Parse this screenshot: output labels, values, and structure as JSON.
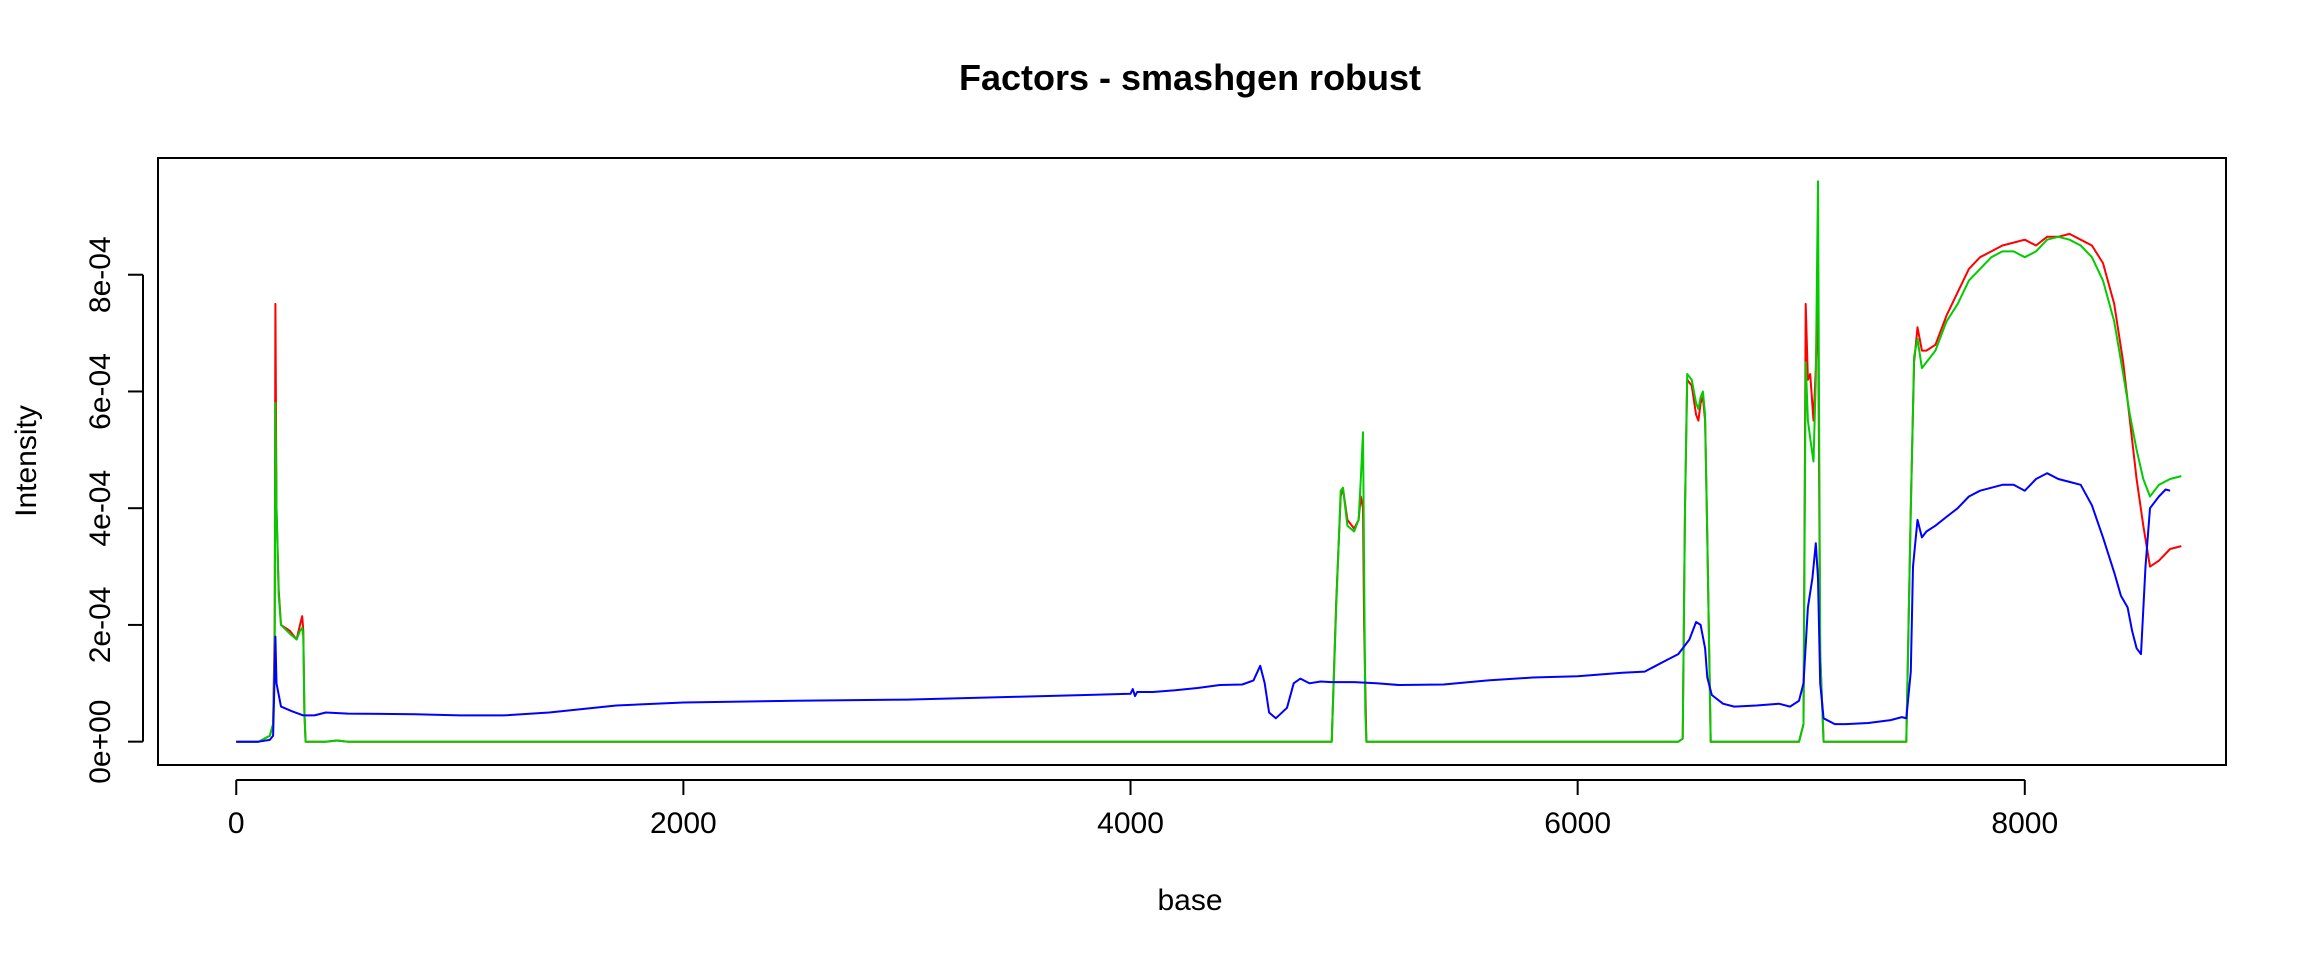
{
  "chart_data": {
    "type": "line",
    "title": "Factors - smashgen robust",
    "xlabel": "base",
    "ylabel": "Intensity",
    "xlim": [
      -350,
      8900
    ],
    "ylim": [
      -4e-05,
      0.001
    ],
    "x_ticks": [
      0,
      2000,
      4000,
      6000,
      8000
    ],
    "x_tick_labels": [
      "0",
      "2000",
      "4000",
      "6000",
      "8000"
    ],
    "y_ticks": [
      0,
      0.0002,
      0.0004,
      0.0006,
      0.0008
    ],
    "y_tick_labels": [
      "0e+00",
      "2e-04",
      "4e-04",
      "6e-04",
      "8e-04"
    ],
    "grid": false,
    "legend": "none",
    "series": [
      {
        "color": "#ff0000",
        "points": [
          [
            0,
            0
          ],
          [
            100,
            0
          ],
          [
            150,
            1e-05
          ],
          [
            165,
            3e-05
          ],
          [
            172,
            0.0002
          ],
          [
            175,
            0.00075
          ],
          [
            180,
            0.0004
          ],
          [
            190,
            0.00026
          ],
          [
            200,
            0.0002
          ],
          [
            240,
            0.00019
          ],
          [
            270,
            0.000175
          ],
          [
            285,
            0.0002
          ],
          [
            295,
            0.000215
          ],
          [
            300,
            0.00019
          ],
          [
            305,
            5e-05
          ],
          [
            310,
            0
          ],
          [
            400,
            0
          ],
          [
            450,
            2e-06
          ],
          [
            500,
            0
          ],
          [
            4900,
            0
          ],
          [
            4920,
            0.00024
          ],
          [
            4940,
            0.00042
          ],
          [
            4950,
            0.000435
          ],
          [
            4970,
            0.00038
          ],
          [
            5000,
            0.000365
          ],
          [
            5020,
            0.00038
          ],
          [
            5030,
            0.00042
          ],
          [
            5040,
            0.0004
          ],
          [
            5045,
            0.0002
          ],
          [
            5055,
            0
          ],
          [
            6450,
            0
          ],
          [
            6470,
            5e-06
          ],
          [
            6480,
            0.0004
          ],
          [
            6490,
            0.00062
          ],
          [
            6510,
            0.00061
          ],
          [
            6530,
            0.00056
          ],
          [
            6540,
            0.00055
          ],
          [
            6550,
            0.00058
          ],
          [
            6560,
            0.00059
          ],
          [
            6570,
            0.00055
          ],
          [
            6580,
            0.00035
          ],
          [
            6595,
            0
          ],
          [
            6990,
            0
          ],
          [
            7010,
            3e-05
          ],
          [
            7020,
            0.00075
          ],
          [
            7030,
            0.00062
          ],
          [
            7040,
            0.00063
          ],
          [
            7055,
            0.00055
          ],
          [
            7065,
            0.00064
          ],
          [
            7075,
            0.00077
          ],
          [
            7085,
            0.00015
          ],
          [
            7100,
            0
          ],
          [
            7470,
            0
          ],
          [
            7490,
            0.0004
          ],
          [
            7505,
            0.00065
          ],
          [
            7520,
            0.00071
          ],
          [
            7540,
            0.00067
          ],
          [
            7560,
            0.00067
          ],
          [
            7600,
            0.00068
          ],
          [
            7650,
            0.00073
          ],
          [
            7700,
            0.00077
          ],
          [
            7750,
            0.00081
          ],
          [
            7800,
            0.00083
          ],
          [
            7850,
            0.00084
          ],
          [
            7900,
            0.00085
          ],
          [
            7950,
            0.000855
          ],
          [
            8000,
            0.00086
          ],
          [
            8050,
            0.00085
          ],
          [
            8100,
            0.000865
          ],
          [
            8150,
            0.000865
          ],
          [
            8200,
            0.00087
          ],
          [
            8250,
            0.00086
          ],
          [
            8300,
            0.00085
          ],
          [
            8350,
            0.00082
          ],
          [
            8400,
            0.00075
          ],
          [
            8440,
            0.00065
          ],
          [
            8470,
            0.00055
          ],
          [
            8500,
            0.00045
          ],
          [
            8530,
            0.00037
          ],
          [
            8560,
            0.0003
          ],
          [
            8600,
            0.00031
          ],
          [
            8650,
            0.00033
          ],
          [
            8700,
            0.000335
          ]
        ]
      },
      {
        "color": "#00cc00",
        "points": [
          [
            0,
            0
          ],
          [
            100,
            0
          ],
          [
            150,
            1e-05
          ],
          [
            165,
            3e-05
          ],
          [
            172,
            0.00015
          ],
          [
            175,
            0.00058
          ],
          [
            180,
            0.0004
          ],
          [
            190,
            0.00025
          ],
          [
            200,
            0.0002
          ],
          [
            240,
            0.000185
          ],
          [
            270,
            0.000175
          ],
          [
            285,
            0.00019
          ],
          [
            295,
            0.000195
          ],
          [
            300,
            0.00018
          ],
          [
            305,
            5e-05
          ],
          [
            310,
            0
          ],
          [
            400,
            0
          ],
          [
            450,
            2e-06
          ],
          [
            500,
            0
          ],
          [
            4900,
            0
          ],
          [
            4920,
            0.00023
          ],
          [
            4940,
            0.00043
          ],
          [
            4950,
            0.000435
          ],
          [
            4970,
            0.00037
          ],
          [
            5000,
            0.00036
          ],
          [
            5020,
            0.00038
          ],
          [
            5030,
            0.00045
          ],
          [
            5040,
            0.00053
          ],
          [
            5045,
            0.0003
          ],
          [
            5050,
            5e-05
          ],
          [
            5055,
            0
          ],
          [
            6450,
            0
          ],
          [
            6470,
            5e-06
          ],
          [
            6480,
            0.0004
          ],
          [
            6490,
            0.00063
          ],
          [
            6510,
            0.00062
          ],
          [
            6530,
            0.00058
          ],
          [
            6540,
            0.00057
          ],
          [
            6550,
            0.00059
          ],
          [
            6560,
            0.0006
          ],
          [
            6570,
            0.00056
          ],
          [
            6580,
            0.00035
          ],
          [
            6595,
            0
          ],
          [
            6990,
            0
          ],
          [
            7010,
            3e-05
          ],
          [
            7020,
            0.00065
          ],
          [
            7030,
            0.00055
          ],
          [
            7040,
            0.00052
          ],
          [
            7055,
            0.00048
          ],
          [
            7065,
            0.00062
          ],
          [
            7075,
            0.00096
          ],
          [
            7085,
            0.00015
          ],
          [
            7100,
            0
          ],
          [
            7470,
            0
          ],
          [
            7490,
            0.0004
          ],
          [
            7505,
            0.00066
          ],
          [
            7520,
            0.00069
          ],
          [
            7540,
            0.00064
          ],
          [
            7560,
            0.00065
          ],
          [
            7600,
            0.00067
          ],
          [
            7650,
            0.00072
          ],
          [
            7700,
            0.00075
          ],
          [
            7750,
            0.00079
          ],
          [
            7800,
            0.00081
          ],
          [
            7850,
            0.00083
          ],
          [
            7900,
            0.00084
          ],
          [
            7950,
            0.00084
          ],
          [
            8000,
            0.00083
          ],
          [
            8050,
            0.00084
          ],
          [
            8100,
            0.00086
          ],
          [
            8150,
            0.000865
          ],
          [
            8200,
            0.00086
          ],
          [
            8250,
            0.00085
          ],
          [
            8300,
            0.00083
          ],
          [
            8350,
            0.00079
          ],
          [
            8400,
            0.00072
          ],
          [
            8440,
            0.00063
          ],
          [
            8470,
            0.00056
          ],
          [
            8500,
            0.0005
          ],
          [
            8530,
            0.00045
          ],
          [
            8560,
            0.00042
          ],
          [
            8600,
            0.00044
          ],
          [
            8650,
            0.00045
          ],
          [
            8700,
            0.000455
          ]
        ]
      },
      {
        "color": "#0000ff",
        "points": [
          [
            0,
            0
          ],
          [
            100,
            0
          ],
          [
            150,
            3e-06
          ],
          [
            165,
            1e-05
          ],
          [
            172,
            0.00012
          ],
          [
            175,
            0.00018
          ],
          [
            180,
            0.0001
          ],
          [
            200,
            6e-05
          ],
          [
            250,
            5.2e-05
          ],
          [
            300,
            4.5e-05
          ],
          [
            350,
            4.5e-05
          ],
          [
            400,
            5e-05
          ],
          [
            500,
            4.8e-05
          ],
          [
            800,
            4.7e-05
          ],
          [
            1000,
            4.5e-05
          ],
          [
            1200,
            4.5e-05
          ],
          [
            1400,
            5e-05
          ],
          [
            1700,
            6.2e-05
          ],
          [
            2000,
            6.7e-05
          ],
          [
            2500,
            7e-05
          ],
          [
            3000,
            7.2e-05
          ],
          [
            3500,
            7.7e-05
          ],
          [
            3800,
            8e-05
          ],
          [
            4000,
            8.2e-05
          ],
          [
            4010,
            9e-05
          ],
          [
            4020,
            7.8e-05
          ],
          [
            4030,
            8.5e-05
          ],
          [
            4100,
            8.5e-05
          ],
          [
            4200,
            8.8e-05
          ],
          [
            4300,
            9.2e-05
          ],
          [
            4400,
            9.7e-05
          ],
          [
            4500,
            9.8e-05
          ],
          [
            4550,
            0.000105
          ],
          [
            4580,
            0.00013
          ],
          [
            4600,
            0.0001
          ],
          [
            4620,
            5e-05
          ],
          [
            4650,
            4e-05
          ],
          [
            4700,
            5.8e-05
          ],
          [
            4730,
            0.0001
          ],
          [
            4760,
            0.000108
          ],
          [
            4800,
            0.0001
          ],
          [
            4850,
            0.000103
          ],
          [
            4900,
            0.000102
          ],
          [
            5000,
            0.000102
          ],
          [
            5100,
            0.0001
          ],
          [
            5200,
            9.7e-05
          ],
          [
            5400,
            9.8e-05
          ],
          [
            5600,
            0.000105
          ],
          [
            5800,
            0.00011
          ],
          [
            6000,
            0.000112
          ],
          [
            6200,
            0.000118
          ],
          [
            6300,
            0.00012
          ],
          [
            6400,
            0.00014
          ],
          [
            6450,
            0.00015
          ],
          [
            6500,
            0.000175
          ],
          [
            6530,
            0.000205
          ],
          [
            6550,
            0.0002
          ],
          [
            6570,
            0.00016
          ],
          [
            6580,
            0.00011
          ],
          [
            6600,
            8e-05
          ],
          [
            6650,
            6.5e-05
          ],
          [
            6700,
            6e-05
          ],
          [
            6800,
            6.2e-05
          ],
          [
            6900,
            6.5e-05
          ],
          [
            6950,
            6e-05
          ],
          [
            6990,
            7e-05
          ],
          [
            7010,
            0.0001
          ],
          [
            7030,
            0.00023
          ],
          [
            7050,
            0.00028
          ],
          [
            7065,
            0.00034
          ],
          [
            7075,
            0.00028
          ],
          [
            7085,
            0.0001
          ],
          [
            7100,
            4e-05
          ],
          [
            7150,
            3e-05
          ],
          [
            7200,
            3e-05
          ],
          [
            7300,
            3.2e-05
          ],
          [
            7400,
            3.7e-05
          ],
          [
            7450,
            4.2e-05
          ],
          [
            7470,
            4e-05
          ],
          [
            7490,
            0.00012
          ],
          [
            7500,
            0.0003
          ],
          [
            7520,
            0.00038
          ],
          [
            7540,
            0.00035
          ],
          [
            7560,
            0.00036
          ],
          [
            7600,
            0.00037
          ],
          [
            7650,
            0.000385
          ],
          [
            7700,
            0.0004
          ],
          [
            7750,
            0.00042
          ],
          [
            7800,
            0.00043
          ],
          [
            7900,
            0.00044
          ],
          [
            7950,
            0.00044
          ],
          [
            8000,
            0.00043
          ],
          [
            8050,
            0.00045
          ],
          [
            8100,
            0.00046
          ],
          [
            8150,
            0.00045
          ],
          [
            8200,
            0.000445
          ],
          [
            8250,
            0.00044
          ],
          [
            8300,
            0.000405
          ],
          [
            8350,
            0.00035
          ],
          [
            8400,
            0.00029
          ],
          [
            8430,
            0.00025
          ],
          [
            8460,
            0.00023
          ],
          [
            8480,
            0.00019
          ],
          [
            8500,
            0.00016
          ],
          [
            8520,
            0.00015
          ],
          [
            8540,
            0.0003
          ],
          [
            8560,
            0.0004
          ],
          [
            8600,
            0.00042
          ],
          [
            8630,
            0.000432
          ],
          [
            8650,
            0.00043
          ]
        ]
      }
    ]
  }
}
